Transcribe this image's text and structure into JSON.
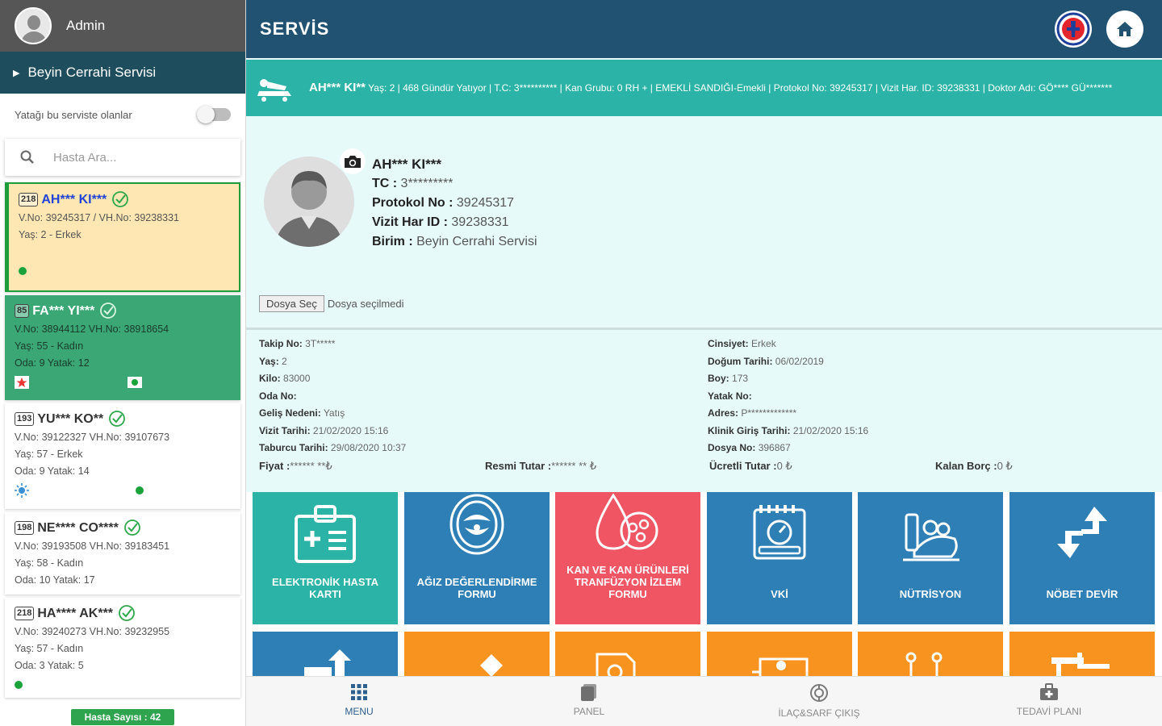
{
  "sidebar": {
    "user_name": "Admin",
    "service_name": "Beyin Cerrahi Servisi",
    "toggle_label": "Yatağı bu serviste olanlar",
    "search_placeholder": "Hasta Ara...",
    "patients": [
      {
        "bed": "218",
        "name": "AH*** KI***",
        "line1": "V.No: 39245317 / VH.No: 39238331",
        "line2": "Yaş: 2 - Erkek",
        "line3": ""
      },
      {
        "bed": "85",
        "name": "FA*** YI***",
        "line1": "V.No: 38944112 VH.No: 38918654",
        "line2": "Yaş: 55 - Kadın",
        "line3": "Oda: 9 Yatak: 12"
      },
      {
        "bed": "193",
        "name": "YU*** KO**",
        "line1": "V.No: 39122327 VH.No: 39107673",
        "line2": "Yaş: 57 - Erkek",
        "line3": "Oda: 9 Yatak: 14"
      },
      {
        "bed": "198",
        "name": "NE**** CO****",
        "line1": "V.No: 39193508 VH.No: 39183451",
        "line2": "Yaş: 58 - Kadın",
        "line3": "Oda: 10 Yatak: 17"
      },
      {
        "bed": "218",
        "name": "HA**** AK***",
        "line1": "V.No: 39240273 VH.No: 39232955",
        "line2": "Yaş: 57 - Kadın",
        "line3": "Oda: 3 Yatak: 5"
      }
    ],
    "patient_count": "Hasta Sayısı : 42"
  },
  "header": {
    "title": "SERVİS"
  },
  "info_strip": {
    "name": "AH*** KI**",
    "details": "Yaş: 2 | 468 Gündür Yatıyor | T.C: 3********** | Kan Grubu: 0 RH + | EMEKLİ SANDIĞI-Emekli | Protokol No: 39245317 | Vizit Har. ID: 39238331 | Doktor Adı: GÖ**** GÜ*******"
  },
  "patient_card": {
    "name": "AH*** KI***",
    "tc_label": "TC : ",
    "tc": "3*********",
    "protocol_label": "Protokol No : ",
    "protocol": "39245317",
    "visit_label": "Vizit Har ID : ",
    "visit": "39238331",
    "unit_label": "Birim : ",
    "unit": "Beyin Cerrahi Servisi",
    "file_button": "Dosya Seç",
    "file_status": "Dosya seçilmedi"
  },
  "details_left": [
    {
      "k": "Takip No:",
      "v": "3T*****"
    },
    {
      "k": "Yaş:",
      "v": "2"
    },
    {
      "k": "Kilo:",
      "v": "83000"
    },
    {
      "k": "Oda No:",
      "v": ""
    },
    {
      "k": "Geliş Nedeni:",
      "v": "Yatış"
    },
    {
      "k": "Vizit Tarihi:",
      "v": "21/02/2020 15:16"
    },
    {
      "k": "Taburcu Tarihi:",
      "v": "29/08/2020 10:37"
    }
  ],
  "details_right": [
    {
      "k": "Cinsiyet:",
      "v": "Erkek"
    },
    {
      "k": "Doğum Tarihi:",
      "v": "06/02/2019"
    },
    {
      "k": "Boy:",
      "v": "173"
    },
    {
      "k": "Yatak No:",
      "v": ""
    },
    {
      "k": "Adres:",
      "v": "P*************"
    },
    {
      "k": "Klinik Giriş Tarihi:",
      "v": "21/02/2020 15:16"
    },
    {
      "k": "Dosya No:",
      "v": "396867"
    }
  ],
  "money": {
    "price_label": "Fiyat : ",
    "price": "****** **₺",
    "official_label": "Resmi Tutar : ",
    "official": "****** ** ₺",
    "fee_label": "Ücretli Tutar : ",
    "fee": "0 ₺",
    "debt_label": "Kalan Borç : ",
    "debt": "0 ₺"
  },
  "tiles": [
    {
      "label": "ELEKTRONİK HASTA KARTI",
      "color": "#2ab3a6",
      "icon": "patient-card-icon"
    },
    {
      "label": "AĞIZ DEĞERLENDİRME FORMU",
      "color": "#2f7fb7",
      "icon": "mouth-icon"
    },
    {
      "label": "KAN VE KAN ÜRÜNLERİ TRANFÜZYON İZLEM FORMU",
      "color": "#ef5563",
      "icon": "blood-icon"
    },
    {
      "label": "VKİ",
      "color": "#2f7fb7",
      "icon": "calendar-scale-icon"
    },
    {
      "label": "NÜTRİSYON",
      "color": "#2f7fb7",
      "icon": "nutrition-icon"
    },
    {
      "label": "NÖBET DEVİR",
      "color": "#2f7fb7",
      "icon": "transfer-arrows-icon"
    }
  ],
  "tiles_row2_colors": [
    "#2f7fb7",
    "#f7931e",
    "#f7931e",
    "#f7931e",
    "#f7931e",
    "#f7931e"
  ],
  "bottom_nav": [
    {
      "label": "MENU",
      "icon": "grid-icon"
    },
    {
      "label": "PANEL",
      "icon": "panel-icon"
    },
    {
      "label": "İLAÇ&SARF ÇIKIŞ",
      "icon": "pharmacy-icon"
    },
    {
      "label": "TEDAVİ PLANI",
      "icon": "medkit-icon"
    }
  ]
}
